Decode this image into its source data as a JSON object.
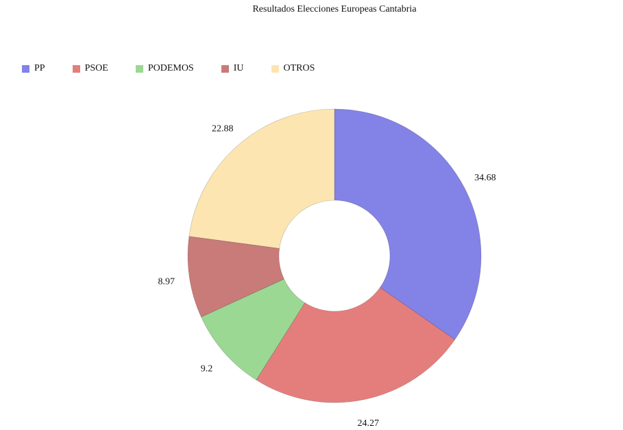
{
  "chart_data": {
    "type": "pie",
    "title": "Resultados Elecciones Europeas Cantabria",
    "categories": [
      "PP",
      "PSOE",
      "PODEMOS",
      "IU",
      "OTROS"
    ],
    "values": [
      34.68,
      24.27,
      9.2,
      8.97,
      22.88
    ],
    "labels": [
      "34.68",
      "24.27",
      "9.2",
      "8.97",
      "22.88"
    ],
    "colors": [
      "#8382e6",
      "#e47e7d",
      "#9bd893",
      "#c97b79",
      "#fde5b2"
    ],
    "legend_position": "top-left",
    "donut": true
  }
}
